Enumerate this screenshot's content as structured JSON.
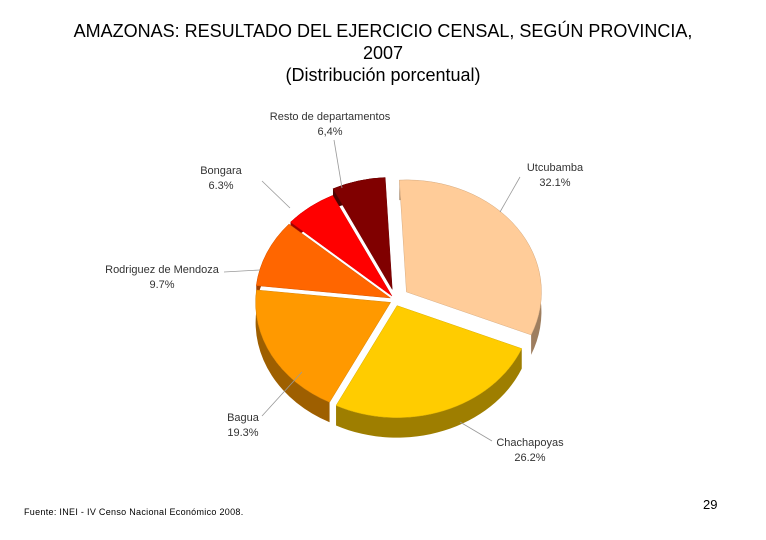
{
  "title": {
    "line1": "AMAZONAS: RESULTADO DEL EJERCICIO CENSAL, SEGÚN PROVINCIA,",
    "line2": "2007",
    "line3": "(Distribución porcentual)"
  },
  "chart_data": {
    "type": "pie",
    "title": "AMAZONAS: RESULTADO DEL EJERCICIO CENSAL, SEGÚN PROVINCIA, 2007 (Distribución porcentual)",
    "categories": [
      "Utcubamba",
      "Chachapoyas",
      "Bagua",
      "Rodriguez de Mendoza",
      "Bongara",
      "Resto de departamentos"
    ],
    "values": [
      32.1,
      26.2,
      19.3,
      9.7,
      6.3,
      6.4
    ],
    "value_labels": [
      "32.1%",
      "26.2%",
      "19.3%",
      "9.7%",
      "6.3%",
      "6,4%"
    ],
    "colors": [
      "#FFCC99",
      "#FFCC00",
      "#FF9900",
      "#FF6600",
      "#FF0000",
      "#800000"
    ],
    "exploded": true,
    "three_d": true,
    "legend": "none"
  },
  "footer": {
    "source": "Fuente: INEI - IV Censo Nacional Económico 2008.",
    "page_number": "29"
  }
}
